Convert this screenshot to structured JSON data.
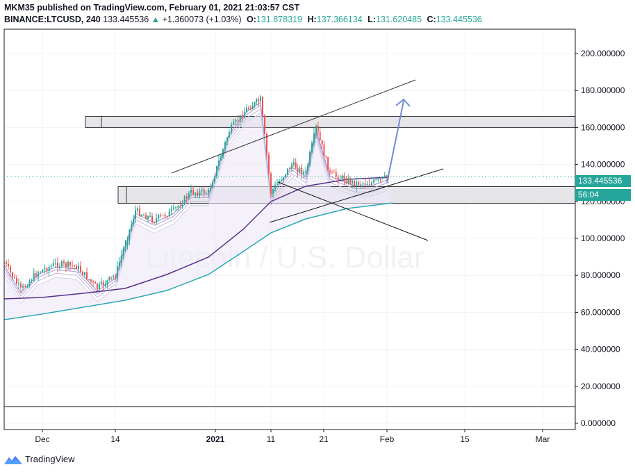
{
  "header": {
    "line1": "MKM35 published on TradingView.com, February 01, 2021 21:03:57 CST",
    "symbol": "BINANCE:LTCUSD, 240",
    "last": "133.445536",
    "change": "+1.360073 (+1.03%)",
    "o_label": "O:",
    "o_value": "131.878319",
    "h_label": "H:",
    "h_value": "137.366134",
    "l_label": "L:",
    "l_value": "131.620485",
    "c_label": "C:",
    "c_value": "133.445536"
  },
  "watermark": "Litecoin / U.S. Dollar",
  "price_tag": {
    "value": "133.445536",
    "countdown": "56:04"
  },
  "footer": {
    "brand": "TradingView"
  },
  "colors": {
    "up": "#26a69a",
    "down": "#ef5350",
    "ribbon": "#7b61b5",
    "ema200": "#2aa7b7",
    "ema100": "#5b2f8a"
  },
  "chart_data": {
    "type": "candlestick",
    "y_ticks": [
      "200.000000",
      "180.000000",
      "160.000000",
      "140.000000",
      "120.000000",
      "100.000000",
      "80.000000",
      "60.000000",
      "40.000000",
      "20.000000",
      "0.000000"
    ],
    "x_ticks": [
      "Dec",
      "14",
      "2021",
      "11",
      "21",
      "Feb",
      "15",
      "Mar"
    ],
    "ylim": [
      0,
      205
    ],
    "last_price": 133.445536,
    "series": [
      {
        "name": "",
        "x": [
          "Nov 22",
          "Nov 26",
          "Nov 29",
          "Dec 3",
          "Dec 7",
          "Dec 11",
          "Dec 14",
          "Dec 18",
          "Dec 22",
          "Dec 26",
          "Dec 29",
          "Jan 1",
          "Jan 4",
          "Jan 7",
          "Jan 9",
          "Jan 11",
          "Jan 14",
          "Jan 17",
          "Jan 19",
          "Jan 22",
          "Jan 25",
          "Jan 28",
          "Feb 1"
        ],
        "values": [
          87,
          72,
          82,
          86,
          85,
          73,
          80,
          115,
          110,
          115,
          125,
          125,
          158,
          170,
          175,
          125,
          140,
          135,
          160,
          135,
          130,
          130,
          133.4
        ]
      }
    ],
    "zones": [
      {
        "from": 160,
        "to": 166
      },
      {
        "from": 119,
        "to": 128
      }
    ]
  }
}
